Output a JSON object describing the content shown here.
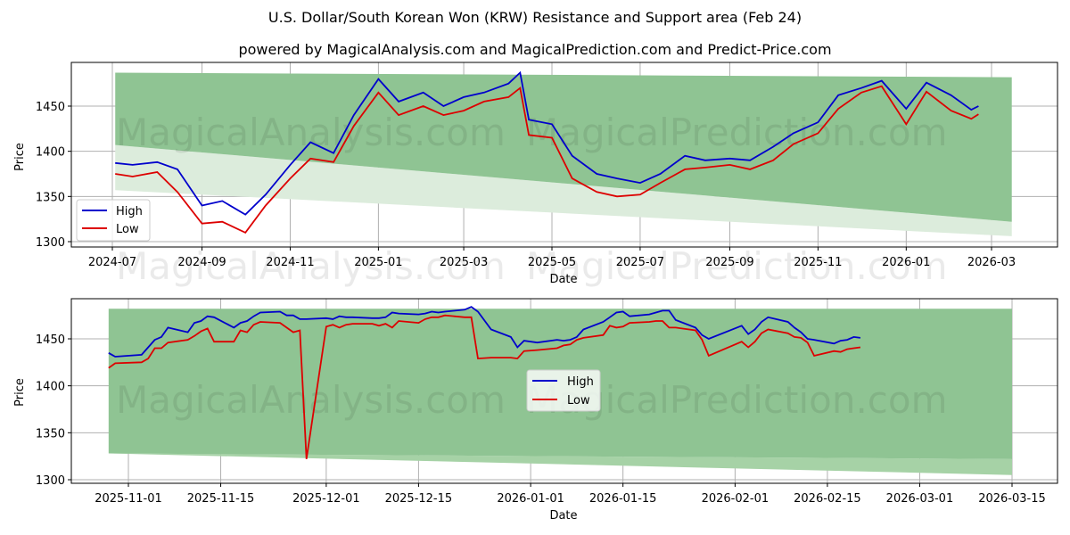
{
  "header": {
    "title": "U.S. Dollar/South Korean Won (KRW) Resistance and Support area (Feb 24)",
    "subtitle": "powered by MagicalAnalysis.com and MagicalPrediction.com and Predict-Price.com"
  },
  "watermarks": [
    "MagicalAnalysis.com",
    "MagicalPrediction.com"
  ],
  "colors": {
    "high": "#0000cc",
    "low": "#dd0000",
    "band_dark": "#8fc493",
    "band_light": "#dcecdc",
    "grid": "#b0b0b0"
  },
  "chart_data": [
    {
      "type": "line",
      "title": "U.S. Dollar/South Korean Won (KRW) Resistance and Support area (Feb 24)",
      "xlabel": "Date",
      "ylabel": "Price",
      "x_ticks": [
        "2024-07",
        "2024-09",
        "2024-11",
        "2025-01",
        "2025-03",
        "2025-05",
        "2025-07",
        "2025-09",
        "2025-11",
        "2026-01",
        "2026-03"
      ],
      "y_ticks": [
        1300,
        1350,
        1400,
        1450
      ],
      "ylim": [
        1295,
        1495
      ],
      "grid": true,
      "legend": {
        "position": "lower left",
        "entries": [
          "High",
          "Low"
        ]
      },
      "x": [
        "2024-07-03",
        "2024-07-15",
        "2024-08-01",
        "2024-08-15",
        "2024-09-01",
        "2024-09-15",
        "2024-10-01",
        "2024-10-15",
        "2024-11-01",
        "2024-11-15",
        "2024-12-01",
        "2024-12-15",
        "2025-01-01",
        "2025-01-15",
        "2025-02-01",
        "2025-02-15",
        "2025-03-01",
        "2025-03-15",
        "2025-04-01",
        "2025-04-09",
        "2025-04-15",
        "2025-05-01",
        "2025-05-15",
        "2025-06-01",
        "2025-06-15",
        "2025-07-01",
        "2025-07-15",
        "2025-08-01",
        "2025-08-15",
        "2025-09-01",
        "2025-09-15",
        "2025-10-01",
        "2025-10-15",
        "2025-11-01",
        "2025-11-15",
        "2025-12-01",
        "2025-12-15",
        "2026-01-01",
        "2026-01-15",
        "2026-02-01",
        "2026-02-15",
        "2026-02-20"
      ],
      "series": [
        {
          "name": "High",
          "values": [
            1387,
            1385,
            1388,
            1380,
            1340,
            1345,
            1330,
            1352,
            1385,
            1410,
            1398,
            1440,
            1480,
            1455,
            1465,
            1450,
            1460,
            1465,
            1475,
            1487,
            1435,
            1430,
            1395,
            1375,
            1370,
            1365,
            1375,
            1395,
            1390,
            1392,
            1390,
            1405,
            1420,
            1432,
            1462,
            1470,
            1478,
            1447,
            1476,
            1462,
            1446,
            1450
          ]
        },
        {
          "name": "Low",
          "values": [
            1375,
            1372,
            1377,
            1355,
            1320,
            1322,
            1310,
            1340,
            1370,
            1392,
            1388,
            1428,
            1465,
            1440,
            1450,
            1440,
            1445,
            1455,
            1460,
            1470,
            1418,
            1415,
            1370,
            1355,
            1350,
            1352,
            1365,
            1380,
            1382,
            1385,
            1380,
            1390,
            1408,
            1420,
            1447,
            1465,
            1472,
            1430,
            1466,
            1445,
            1436,
            1441
          ]
        }
      ],
      "bands": [
        {
          "name": "Resistance/Support (dark)",
          "x_start": "2024-07-03",
          "x_end": "2026-03-15",
          "upper": [
            1487,
            1482
          ],
          "lower": [
            1407,
            1322
          ]
        },
        {
          "name": "Resistance/Support (light)",
          "x_start": "2024-07-03",
          "x_end": "2026-03-15",
          "upper": [
            1407,
            1322
          ],
          "lower": [
            1357,
            1306
          ]
        }
      ]
    },
    {
      "type": "line",
      "xlabel": "Date",
      "ylabel": "Price",
      "x_ticks": [
        "2025-11-01",
        "2025-11-15",
        "2025-12-01",
        "2025-12-15",
        "2026-01-01",
        "2026-01-15",
        "2026-02-01",
        "2026-02-15",
        "2026-03-01",
        "2026-03-15"
      ],
      "y_ticks": [
        1300,
        1350,
        1400,
        1450
      ],
      "ylim": [
        1297,
        1493
      ],
      "grid": true,
      "legend": {
        "position": "center",
        "entries": [
          "High",
          "Low"
        ]
      },
      "x": [
        "2025-10-29",
        "2025-10-30",
        "2025-11-03",
        "2025-11-04",
        "2025-11-05",
        "2025-11-06",
        "2025-11-07",
        "2025-11-10",
        "2025-11-11",
        "2025-11-12",
        "2025-11-13",
        "2025-11-14",
        "2025-11-17",
        "2025-11-18",
        "2025-11-19",
        "2025-11-20",
        "2025-11-21",
        "2025-11-24",
        "2025-11-25",
        "2025-11-26",
        "2025-11-27",
        "2025-11-28",
        "2025-12-01",
        "2025-12-02",
        "2025-12-03",
        "2025-12-04",
        "2025-12-05",
        "2025-12-08",
        "2025-12-09",
        "2025-12-10",
        "2025-12-11",
        "2025-12-12",
        "2025-12-15",
        "2025-12-16",
        "2025-12-17",
        "2025-12-18",
        "2025-12-19",
        "2025-12-22",
        "2025-12-23",
        "2025-12-24",
        "2025-12-26",
        "2025-12-29",
        "2025-12-30",
        "2025-12-31",
        "2026-01-02",
        "2026-01-05",
        "2026-01-06",
        "2026-01-07",
        "2026-01-08",
        "2026-01-09",
        "2026-01-12",
        "2026-01-13",
        "2026-01-14",
        "2026-01-15",
        "2026-01-16",
        "2026-01-19",
        "2026-01-20",
        "2026-01-21",
        "2026-01-22",
        "2026-01-23",
        "2026-01-26",
        "2026-01-27",
        "2026-01-28",
        "2026-02-02",
        "2026-02-03",
        "2026-02-04",
        "2026-02-05",
        "2026-02-06",
        "2026-02-09",
        "2026-02-10",
        "2026-02-11",
        "2026-02-12",
        "2026-02-13",
        "2026-02-16",
        "2026-02-17",
        "2026-02-18",
        "2026-02-19",
        "2026-02-20"
      ],
      "series": [
        {
          "name": "High",
          "values": [
            1435,
            1431,
            1433,
            1441,
            1449,
            1452,
            1462,
            1457,
            1467,
            1469,
            1474,
            1473,
            1462,
            1467,
            1469,
            1474,
            1478,
            1479,
            1475,
            1475,
            1471,
            1471,
            1472,
            1471,
            1474,
            1473,
            1473,
            1472,
            1472,
            1473,
            1478,
            1477,
            1476,
            1477,
            1479,
            1478,
            1479,
            1481,
            1484,
            1479,
            1460,
            1452,
            1441,
            1448,
            1446,
            1449,
            1448,
            1449,
            1452,
            1460,
            1468,
            1473,
            1478,
            1479,
            1474,
            1476,
            1478,
            1480,
            1480,
            1470,
            1462,
            1454,
            1450,
            1464,
            1455,
            1460,
            1468,
            1473,
            1468,
            1462,
            1457,
            1450,
            1449,
            1445,
            1448,
            1449,
            1452,
            1451
          ]
        },
        {
          "name": "Low",
          "values": [
            1419,
            1424,
            1425,
            1429,
            1440,
            1440,
            1446,
            1449,
            1453,
            1458,
            1461,
            1447,
            1447,
            1459,
            1457,
            1465,
            1468,
            1467,
            1462,
            1457,
            1459,
            1322,
            1463,
            1465,
            1462,
            1465,
            1466,
            1466,
            1464,
            1466,
            1462,
            1469,
            1467,
            1471,
            1473,
            1473,
            1475,
            1473,
            1473,
            1429,
            1430,
            1430,
            1429,
            1437,
            1438,
            1440,
            1443,
            1444,
            1449,
            1451,
            1454,
            1464,
            1462,
            1463,
            1467,
            1468,
            1469,
            1469,
            1462,
            1462,
            1459,
            1449,
            1432,
            1447,
            1441,
            1447,
            1456,
            1460,
            1456,
            1452,
            1451,
            1446,
            1432,
            1437,
            1436,
            1439,
            1440,
            1441
          ]
        }
      ],
      "bands": [
        {
          "name": "Resistance/Support (dark)",
          "x_start": "2025-10-29",
          "x_end": "2026-03-15",
          "upper": [
            1482,
            1482
          ],
          "lower": [
            1328,
            1322
          ]
        },
        {
          "name": "Resistance/Support (light)",
          "x_start": "2025-10-29",
          "x_end": "2026-03-15",
          "upper": [
            1328,
            1322
          ],
          "lower": [
            1328,
            1305
          ]
        }
      ]
    }
  ]
}
